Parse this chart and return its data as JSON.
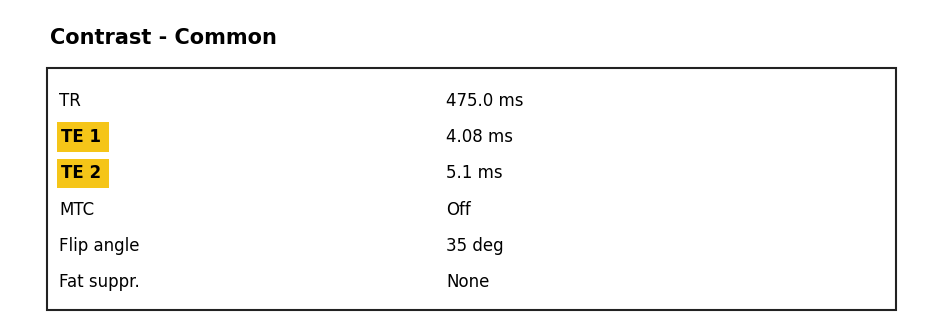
{
  "title": "Contrast - Common",
  "title_fontsize": 15,
  "title_fontweight": "bold",
  "background_color": "#ffffff",
  "table_rows": [
    {
      "label": "TR",
      "value": "475.0 ms",
      "highlight": false
    },
    {
      "label": "TE 1",
      "value": "4.08 ms",
      "highlight": true
    },
    {
      "label": "TE 2",
      "value": "5.1 ms",
      "highlight": true
    },
    {
      "label": "MTC",
      "value": "Off",
      "highlight": false
    },
    {
      "label": "Flip angle",
      "value": "35 deg",
      "highlight": false
    },
    {
      "label": "Fat suppr.",
      "value": "None",
      "highlight": false
    }
  ],
  "highlight_color": "#F5C518",
  "row_fontsize": 12,
  "fig_width": 9.26,
  "fig_height": 3.2,
  "dpi": 100
}
